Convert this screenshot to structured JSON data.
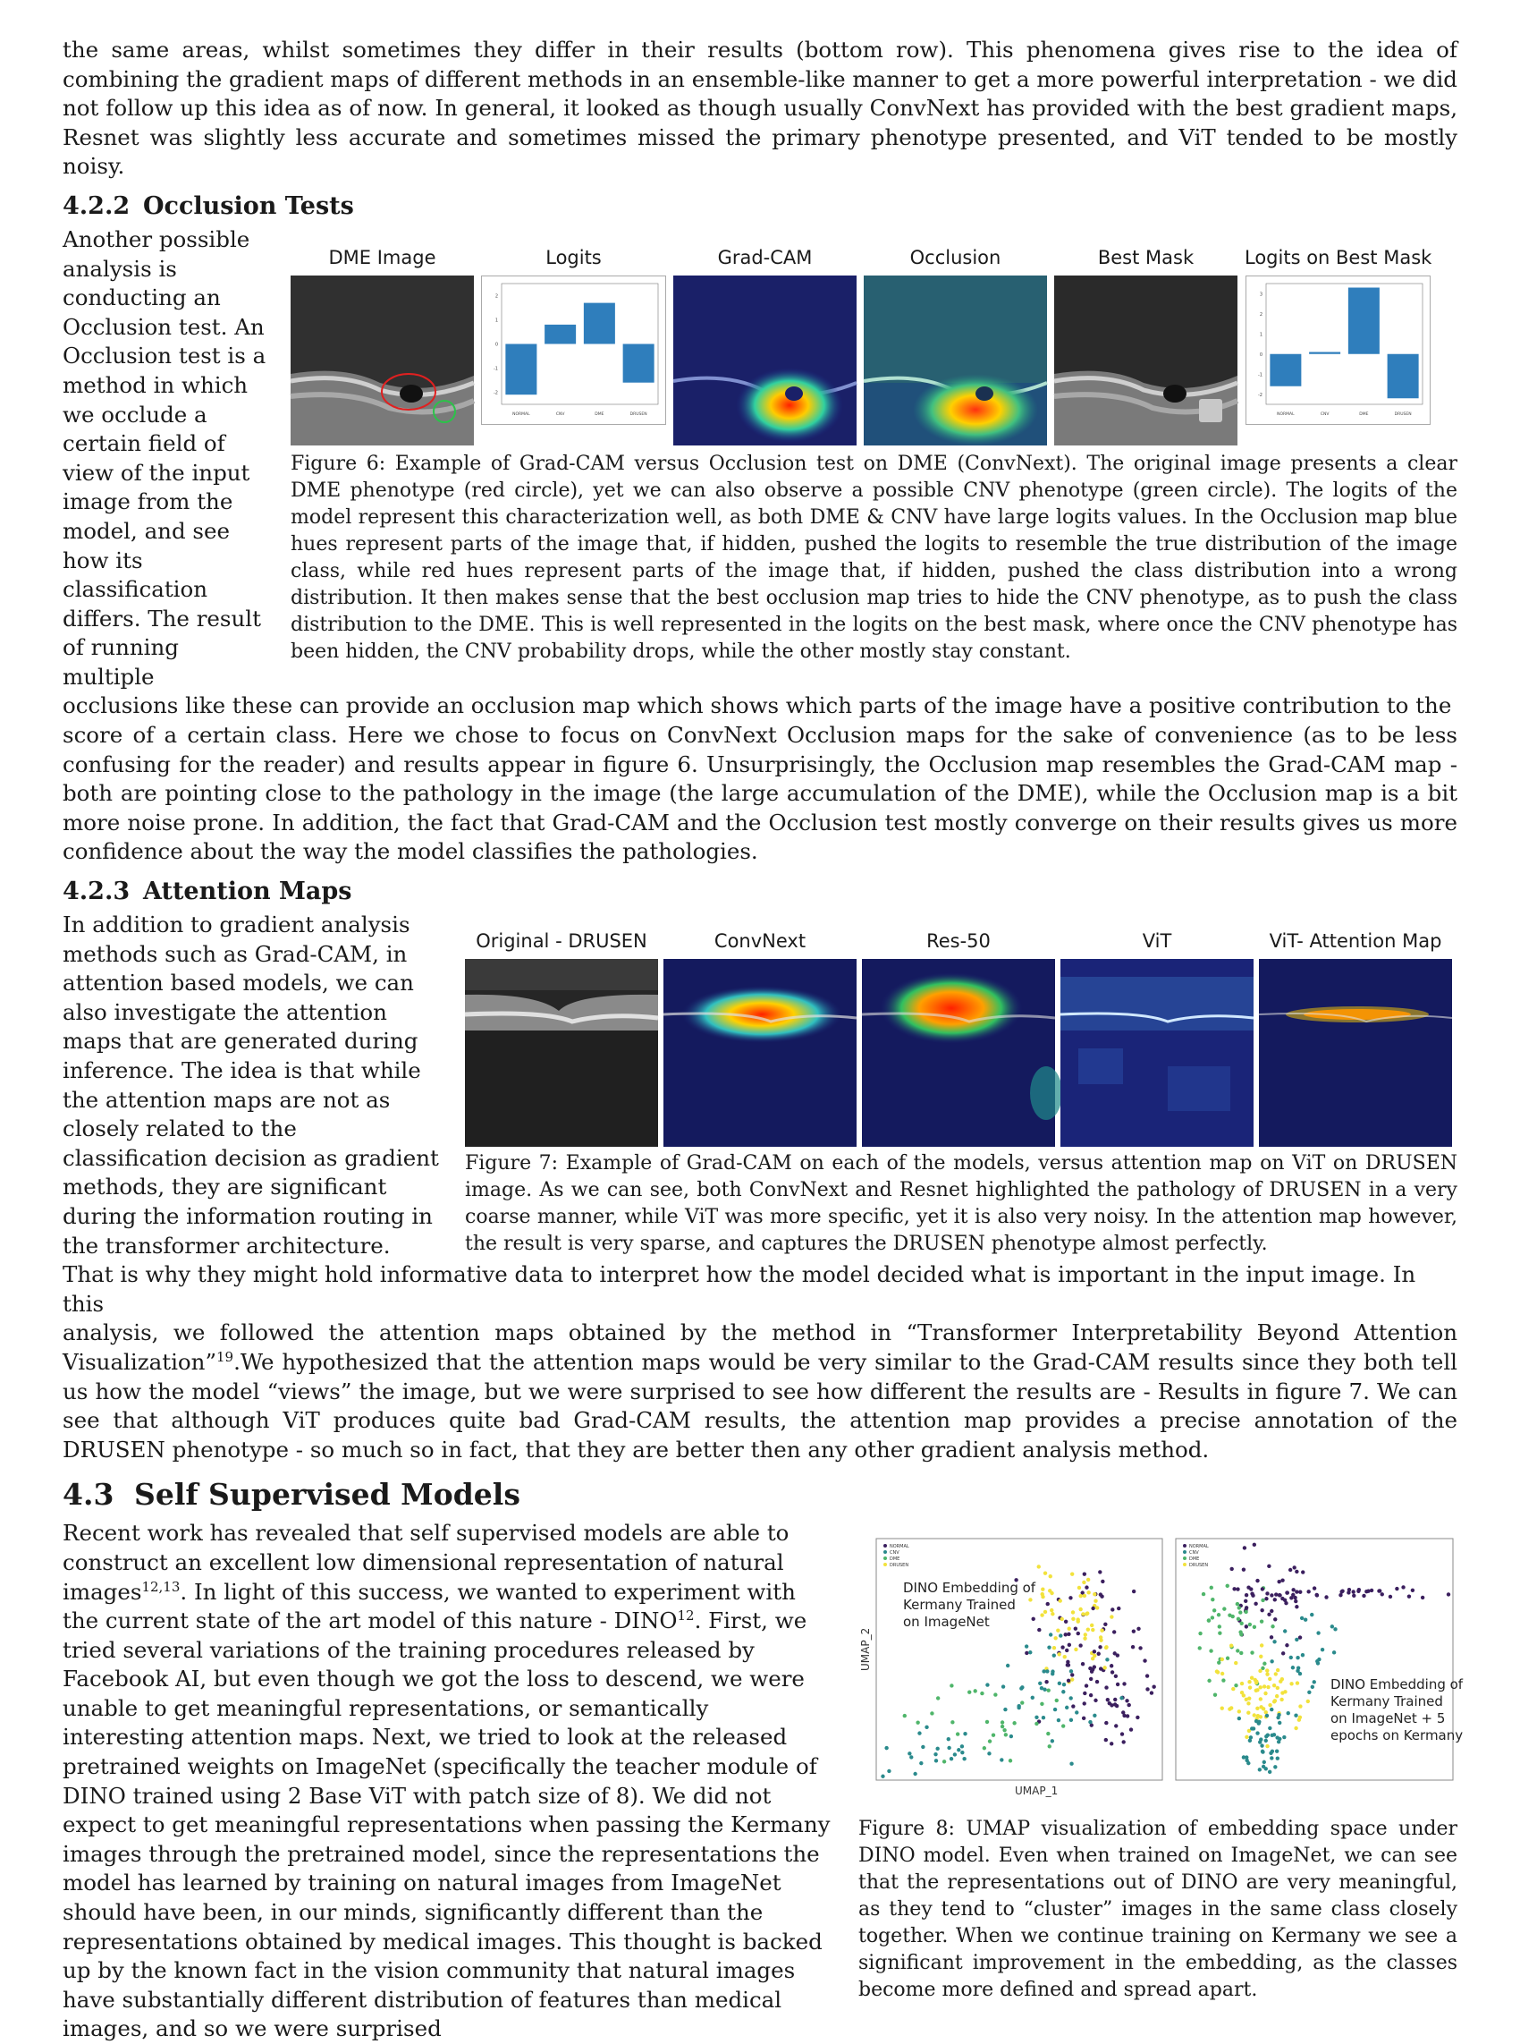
{
  "top_paragraph": "the same areas, whilst sometimes they differ in their results (bottom row). This phenomena gives rise to the idea of combining the gradient maps of different methods in an ensemble-like manner to get a more powerful interpretation - we did not follow up this idea as of now. In general, it looked as though usually ConvNext has provided with the best gradient maps, Resnet was slightly less accurate and sometimes missed the primary phenotype presented, and ViT tended to be mostly noisy.",
  "sec_422": {
    "num": "4.2.2",
    "title": "Occlusion Tests",
    "body_wrap": "Another possible analysis is conducting an Occlusion test. An Occlusion test is a method in which we occlude a certain field of view of the input image from the model, and see how its classification differs. The result of running multiple occlusions like these can provide an occlusion map which shows which parts of the image have a positive contribution to the",
    "body_full": "score of a certain class. Here we chose to focus on ConvNext Occlusion maps for the sake of convenience (as to be less confusing for the reader) and results appear in figure 6. Unsurprisingly, the Occlusion map resembles the Grad-CAM map - both are pointing close to the pathology in the image (the large accumulation of the DME), while the Occlusion map is a bit more noise prone. In addition, the fact that Grad-CAM and the Occlusion test mostly converge on their results gives us more confidence about the way the model classifies the pathologies."
  },
  "fig6": {
    "titles": [
      "DME Image",
      "Logits",
      "Grad-CAM",
      "Occlusion",
      "Best Mask",
      "Logits on Best Mask"
    ],
    "caption": "Figure 6: Example of Grad-CAM versus Occlusion test on DME (ConvNext). The original image presents a clear DME phenotype (red circle), yet we can also observe a possible CNV phenotype (green circle). The logits of the model represent this characterization well, as both DME & CNV have large logits values. In the Occlusion map blue hues represent parts of the image that, if hidden, pushed the logits to resemble the true distribution of the image class, while red hues represent parts of the image that, if hidden, pushed the class distribution into a wrong distribution. It then makes sense that the best occlusion map tries to hide the CNV phenotype, as to push the class distribution to the DME. This is well represented in the logits on the best mask, where once the CNV phenotype has been hidden, the CNV probability drops, while the other mostly stay constant."
  },
  "chart_data": [
    {
      "type": "bar",
      "title": "Logits",
      "categories": [
        "NORMAL",
        "CNV",
        "DME",
        "DRUSEN"
      ],
      "values": [
        -2.1,
        0.8,
        1.7,
        -1.6
      ],
      "ylim": [
        -2.5,
        2.5
      ],
      "yticks": [
        "2",
        "1",
        "0",
        "-1",
        "-2"
      ],
      "bar_color": "#2f7ebc"
    },
    {
      "type": "bar",
      "title": "Logits on Best Mask",
      "categories": [
        "NORMAL",
        "CNV",
        "DME",
        "DRUSEN"
      ],
      "values": [
        -1.6,
        0.1,
        3.3,
        -2.2
      ],
      "ylim": [
        -2.5,
        3.5
      ],
      "yticks": [
        "3",
        "2",
        "1",
        "0",
        "-1",
        "-2"
      ],
      "bar_color": "#2f7ebc"
    }
  ],
  "sec_423": {
    "num": "4.2.3",
    "title": "Attention Maps",
    "body_wrap": "In addition to gradient analysis methods such as Grad-CAM, in attention based models, we can also investigate the attention maps that are generated during inference. The idea is that while the attention maps are not as closely related to the classification decision as gradient methods, they are significant during the information routing in the transformer architecture. That is why they might hold informative data to interpret how the model decided what is important in the input image. In this",
    "body_full_a": "analysis, we followed the attention maps obtained by the method in “Transformer Interpretability Beyond Attention Visualization”",
    "body_full_ref": "19",
    "body_full_b": ".We hypothesized that the attention maps would be very similar to the Grad-CAM results since they both tell us how the model “views” the image, but we were surprised to see how different the results are - Results in figure 7. We can see that although ViT produces quite bad Grad-CAM results, the attention map provides a precise annotation of the DRUSEN phenotype - so much so in fact, that they are better then any other gradient analysis method."
  },
  "fig7": {
    "titles": [
      "Original - DRUSEN",
      "ConvNext",
      "Res-50",
      "ViT",
      "ViT- Attention Map"
    ],
    "caption": "Figure 7: Example of Grad-CAM on each of the models, versus attention map on ViT on DRUSEN image. As we can see, both ConvNext and Resnet highlighted the pathology of DRUSEN in a very coarse manner, while ViT was more specific, yet it is also very noisy. In the attention map however, the result is very sparse, and captures the DRUSEN phenotype almost perfectly."
  },
  "sec_43": {
    "num": "4.3",
    "title": "Self Supervised Models",
    "p1": "Recent work has revealed that self supervised models are able to construct an excellent low dimensional representation of natural images",
    "p1_ref": "12,13",
    "p2": ". In light of this success, we wanted to experiment with the current state of the art model of this nature - DINO",
    "p2_ref": "12",
    "p3": ". First, we tried several variations of the training procedures released by Facebook AI, but even though we got the loss to descend, we were unable to get meaningful representations, or semantically interesting attention maps. Next, we tried to look at the released pretrained weights on ImageNet (specifically the teacher module of DINO trained using 2 Base ViT with patch size of 8). We did not expect to get meaningful representations when passing the Kermany images through the pretrained model, since the representations the model has learned by training on natural images from ImageNet should have been, in our minds, significantly different than the representations obtained by medical images. This thought is backed up by the known fact in the vision community that natural images have substantially different distribution of features than medical images, and so we were surprised"
  },
  "fig8": {
    "legend": [
      "NORMAL",
      "CNV",
      "DME",
      "DRUSEN"
    ],
    "legend_colors": [
      "#3b1f5e",
      "#2a8a8c",
      "#4fb56a",
      "#f2e23c"
    ],
    "left_label": "DINO Embedding of Kermany Trained on ImageNet",
    "right_label": "DINO Embedding of Kermany Trained on ImageNet + 5 epochs on Kermany",
    "xlabel": "UMAP_1",
    "ylabel": "UMAP_2",
    "caption": "Figure 8: UMAP visualization of embedding space under DINO model. Even when trained on ImageNet, we can see that the representations out of DINO are very meaningful, as they tend to “cluster” images in the same class closely together. When we continue training on Kermany we see a significant improvement in the embedding, as the classes become more defined and spread apart."
  }
}
